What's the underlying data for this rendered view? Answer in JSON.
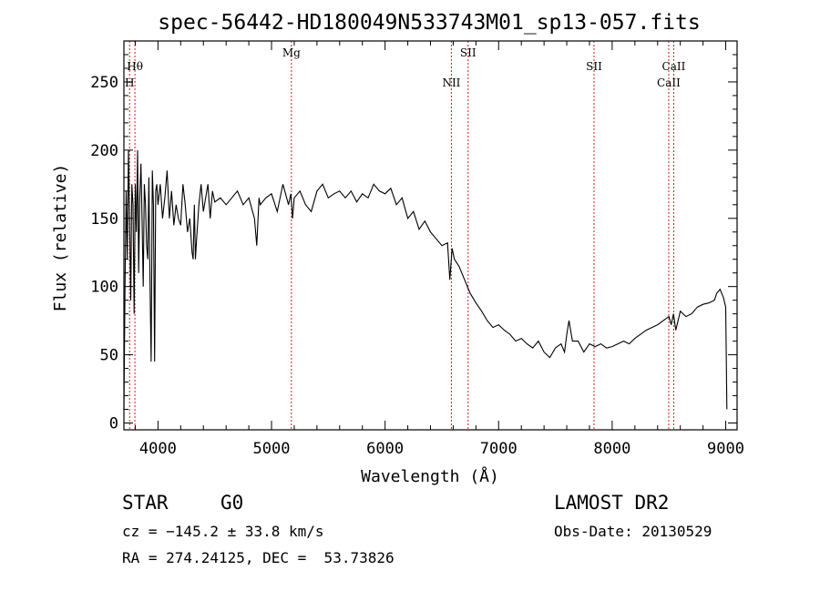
{
  "chart_data": {
    "type": "line",
    "title": "spec-56442-HD180049N533743M01_sp13-057.fits",
    "xlabel": "Wavelength (Å)",
    "ylabel": "Flux (relative)",
    "xlim": [
      3700,
      9100
    ],
    "ylim": [
      -5,
      280
    ],
    "xticks": [
      4000,
      5000,
      6000,
      7000,
      8000,
      9000
    ],
    "yticks": [
      0,
      50,
      100,
      150,
      200,
      250
    ],
    "grid": false,
    "series": [
      {
        "x": [
          3700,
          3710,
          3720,
          3730,
          3740,
          3750,
          3760,
          3770,
          3780,
          3790,
          3800,
          3810,
          3820,
          3830,
          3840,
          3850,
          3860,
          3870,
          3880,
          3890,
          3900,
          3910,
          3920,
          3930,
          3940,
          3950,
          3960,
          3970,
          3980,
          3990,
          4000,
          4020,
          4040,
          4060,
          4080,
          4100,
          4120,
          4140,
          4160,
          4180,
          4200,
          4220,
          4240,
          4260,
          4280,
          4300,
          4310,
          4320,
          4330,
          4340,
          4360,
          4380,
          4400,
          4420,
          4440,
          4460,
          4480,
          4500,
          4550,
          4600,
          4650,
          4700,
          4750,
          4800,
          4850,
          4870,
          4890,
          4900,
          4950,
          5000,
          5050,
          5100,
          5150,
          5170,
          5185,
          5200,
          5250,
          5300,
          5350,
          5400,
          5450,
          5500,
          5550,
          5600,
          5650,
          5700,
          5750,
          5800,
          5850,
          5900,
          5950,
          6000,
          6050,
          6100,
          6150,
          6200,
          6250,
          6300,
          6350,
          6400,
          6450,
          6500,
          6550,
          6570,
          6590,
          6610,
          6650,
          6700,
          6750,
          6800,
          6850,
          6900,
          6950,
          7000,
          7050,
          7100,
          7150,
          7200,
          7250,
          7300,
          7350,
          7400,
          7450,
          7500,
          7550,
          7580,
          7600,
          7620,
          7650,
          7700,
          7750,
          7800,
          7850,
          7900,
          7950,
          8000,
          8050,
          8100,
          8150,
          8200,
          8250,
          8300,
          8350,
          8400,
          8450,
          8500,
          8520,
          8540,
          8560,
          8600,
          8650,
          8700,
          8750,
          8800,
          8850,
          8900,
          8920,
          8950,
          8980,
          9000,
          9010
        ],
        "y": [
          10,
          100,
          170,
          120,
          200,
          150,
          90,
          175,
          160,
          80,
          175,
          140,
          200,
          110,
          165,
          190,
          150,
          100,
          175,
          160,
          130,
          120,
          180,
          100,
          45,
          185,
          160,
          45,
          170,
          175,
          160,
          175,
          150,
          165,
          185,
          150,
          170,
          145,
          160,
          150,
          145,
          175,
          160,
          140,
          150,
          125,
          120,
          160,
          120,
          135,
          160,
          175,
          155,
          165,
          175,
          150,
          170,
          162,
          165,
          160,
          165,
          170,
          160,
          165,
          150,
          130,
          165,
          160,
          165,
          168,
          155,
          175,
          160,
          168,
          150,
          165,
          170,
          160,
          155,
          170,
          175,
          165,
          168,
          170,
          165,
          170,
          162,
          168,
          165,
          175,
          170,
          168,
          172,
          160,
          165,
          150,
          155,
          142,
          148,
          140,
          135,
          130,
          132,
          105,
          128,
          120,
          115,
          105,
          95,
          88,
          82,
          75,
          70,
          72,
          68,
          65,
          60,
          62,
          58,
          55,
          60,
          52,
          48,
          55,
          58,
          52,
          65,
          75,
          60,
          60,
          52,
          58,
          56,
          58,
          55,
          56,
          58,
          60,
          58,
          62,
          65,
          68,
          70,
          72,
          75,
          78,
          72,
          80,
          68,
          82,
          78,
          80,
          85,
          87,
          88,
          90,
          95,
          98,
          92,
          85,
          10
        ]
      }
    ],
    "lines": [
      {
        "label": "Hθ",
        "x": 3797,
        "row": 1
      },
      {
        "label": "H",
        "x": 3750,
        "row": 2
      },
      {
        "label": "Mg",
        "x": 5175,
        "row": 0
      },
      {
        "label": "NII",
        "x": 6584,
        "row": 2
      },
      {
        "label": "SII",
        "x": 6731,
        "row": 0
      },
      {
        "label": "SII",
        "x": 7840,
        "row": 1
      },
      {
        "label": "CaII",
        "x": 8542,
        "row": 1
      },
      {
        "label": "CaII",
        "x": 8498,
        "row": 2
      }
    ]
  },
  "info": {
    "class": "STAR",
    "subclass": "G0",
    "survey": "LAMOST DR2",
    "cz": "cz = −145.2 ± 33.8 km/s",
    "obs_date": "Obs-Date: 20130529",
    "radec": "RA = 274.24125, DEC =  53.73826"
  },
  "colors": {
    "line_marker": "#cc2222",
    "spectrum": "#000000"
  }
}
